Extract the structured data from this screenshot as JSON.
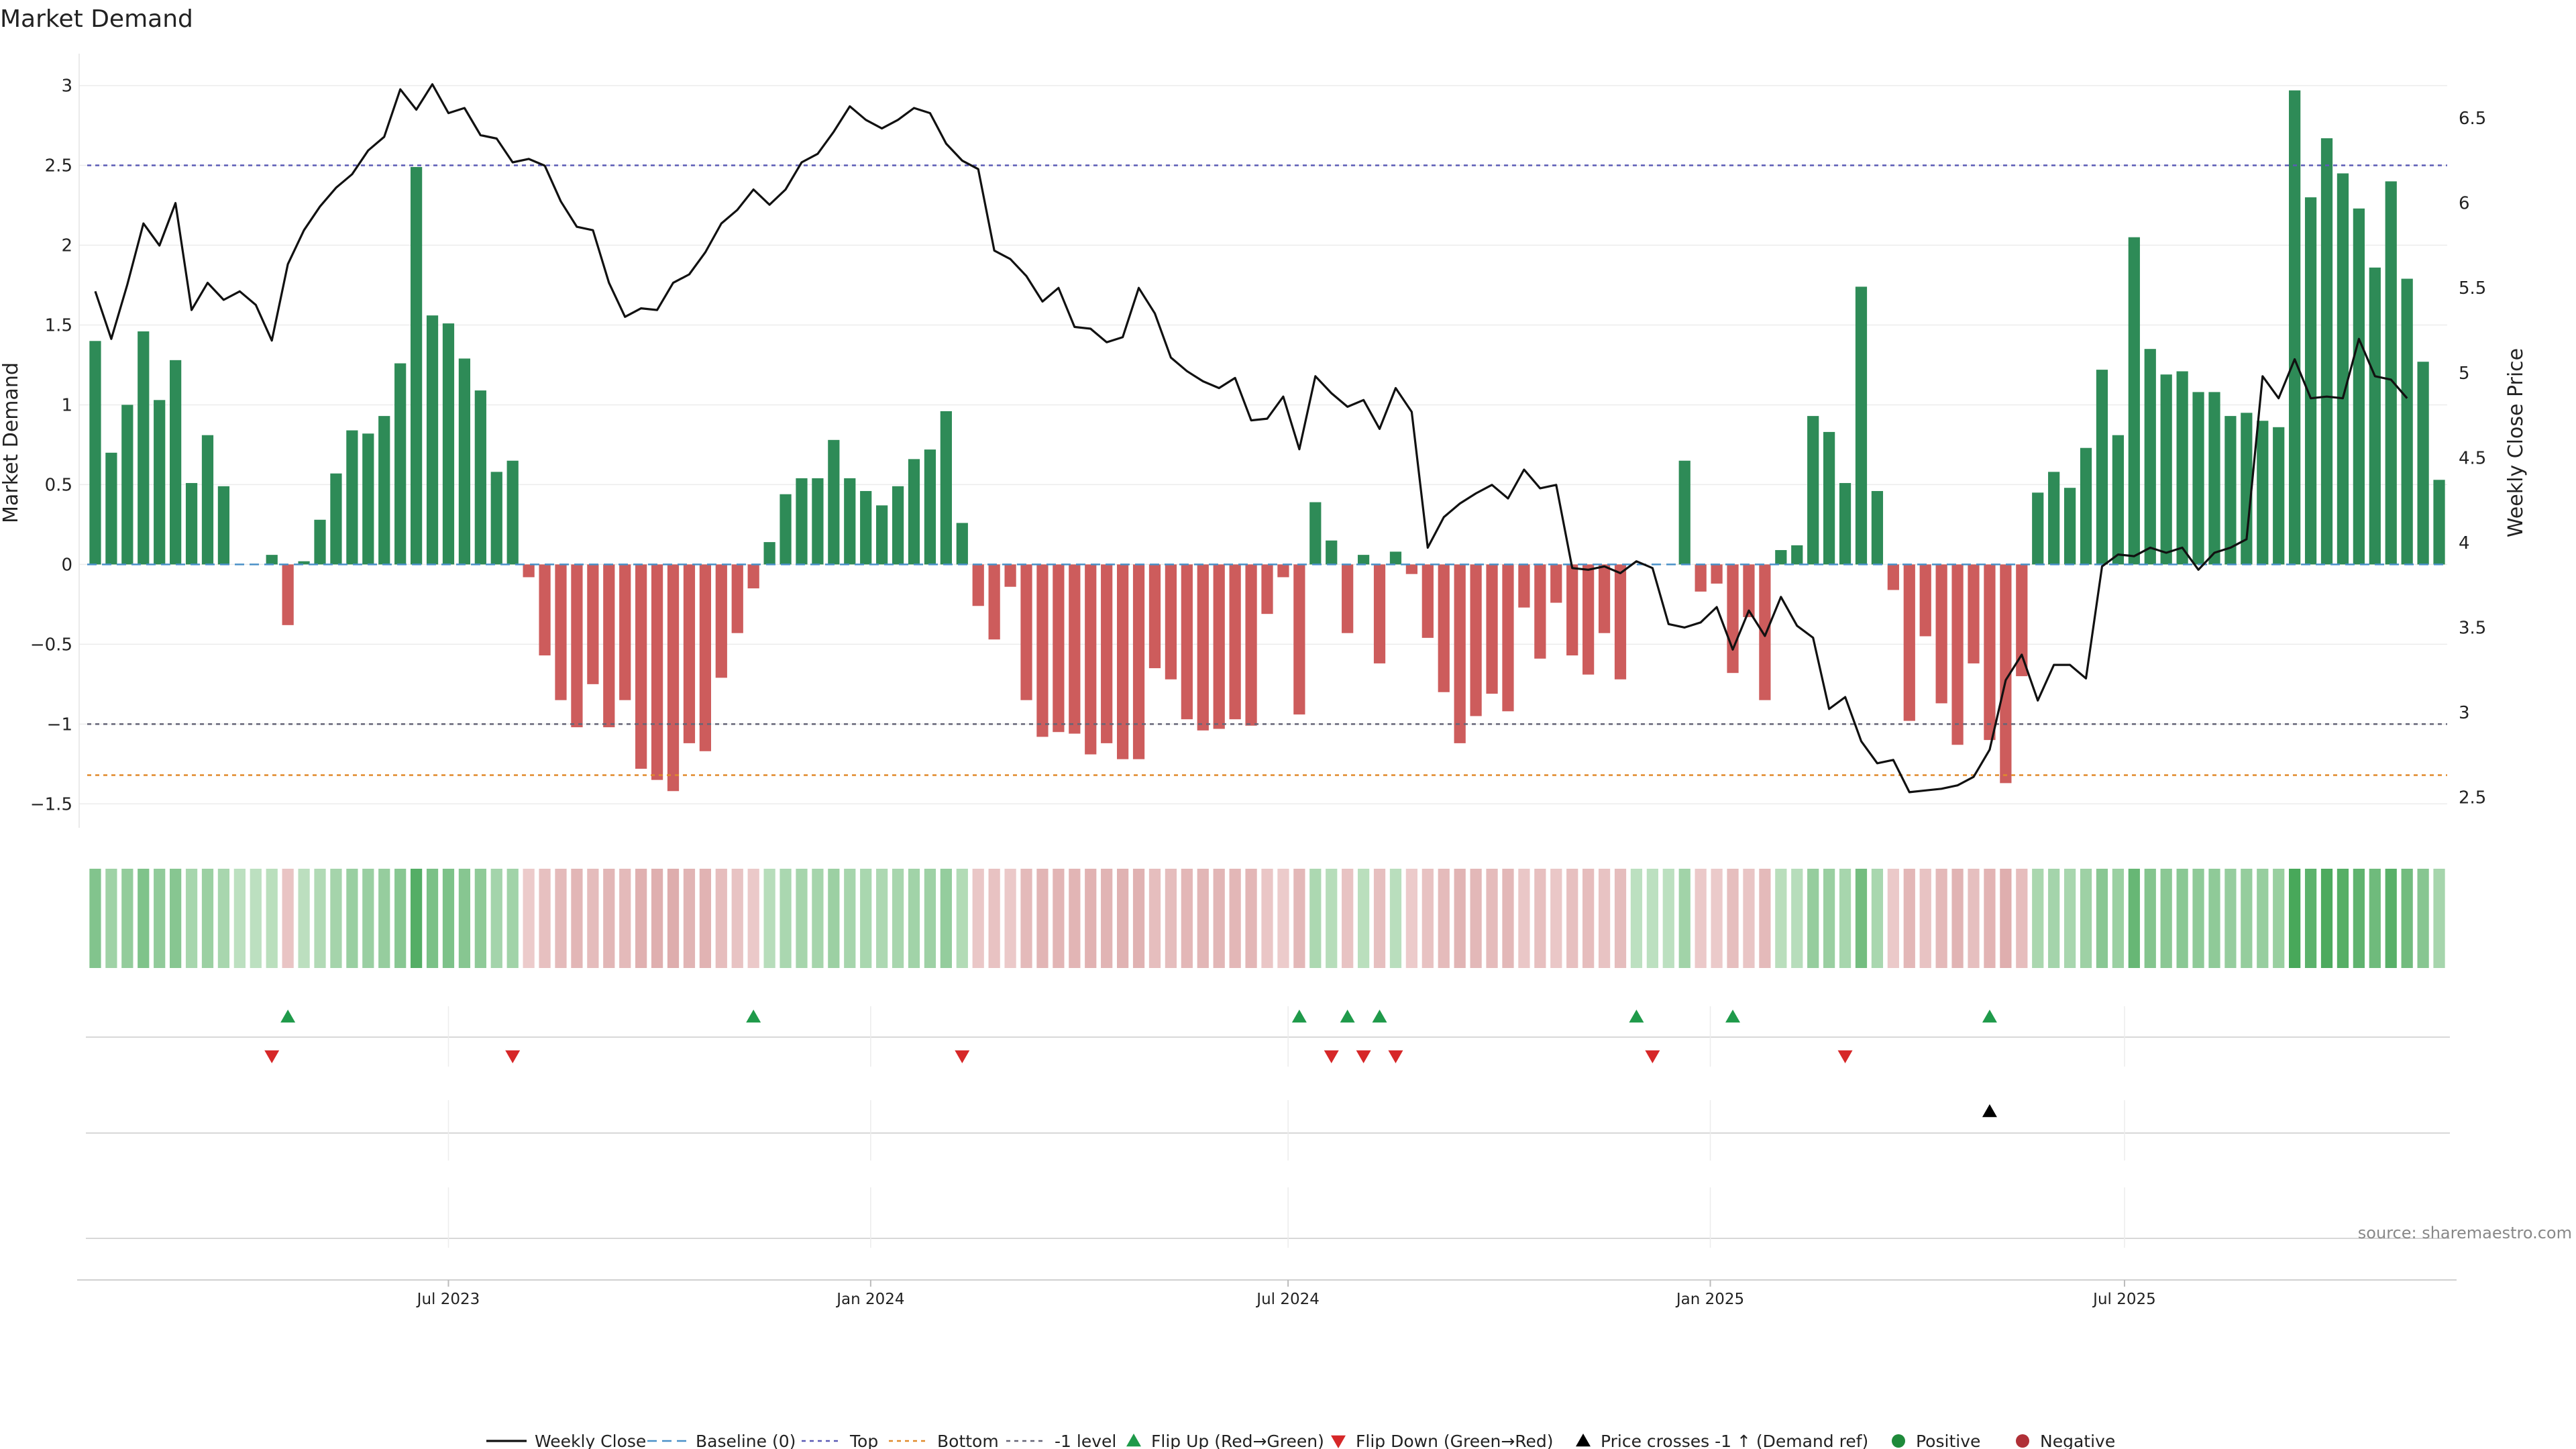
{
  "chart_data": {
    "type": "bar+line",
    "title": "Market Demand",
    "ylabel_left": "Market Demand",
    "ylabel_right": "Weekly Close Price",
    "ylim_left": [
      -1.65,
      3.2
    ],
    "yticks_left": [
      -1.5,
      -1,
      -0.5,
      0,
      0.5,
      1,
      1.5,
      2,
      2.5,
      3
    ],
    "ytick_labels_left": [
      "−1.5",
      "−1",
      "−0.5",
      "0",
      "0.5",
      "1",
      "1.5",
      "2",
      "2.5",
      "3"
    ],
    "ylim_right": [
      2.32,
      6.88
    ],
    "yticks_right": [
      2.5,
      3,
      3.5,
      4,
      4.5,
      5,
      5.5,
      6,
      6.5
    ],
    "ytick_labels_right": [
      "2.5",
      "3",
      "3.5",
      "4",
      "4.5",
      "5",
      "5.5",
      "6",
      "6.5"
    ],
    "x_week_range": [
      0,
      144
    ],
    "xticks": [
      {
        "label": "Jul 2023",
        "week": 22
      },
      {
        "label": "Jan 2024",
        "week": 48.3
      },
      {
        "label": "Jul 2024",
        "week": 74.3
      },
      {
        "label": "Jan 2025",
        "week": 100.6
      },
      {
        "label": "Jul 2025",
        "week": 126.4
      }
    ],
    "reference_lines": [
      {
        "name": "Top",
        "value": 2.5,
        "color": "#5b5bb5"
      },
      {
        "name": "Bottom",
        "value": -1.32,
        "color": "#e08a2c"
      },
      {
        "name": "-1 level",
        "value": -1,
        "color": "#666677"
      },
      {
        "name": "Baseline (0)",
        "value": 0,
        "color": "#4a90c8"
      }
    ],
    "demand": [
      1.4,
      0.7,
      1.0,
      1.46,
      1.03,
      1.28,
      0.51,
      0.81,
      0.49,
      0,
      0,
      0.06,
      -0.38,
      0.02,
      0.28,
      0.57,
      0.84,
      0.82,
      0.93,
      1.26,
      2.49,
      1.56,
      1.51,
      1.29,
      1.09,
      0.58,
      0.65,
      -0.08,
      -0.57,
      -0.85,
      -1.02,
      -0.75,
      -1.02,
      -0.85,
      -1.28,
      -1.35,
      -1.42,
      -1.12,
      -1.17,
      -0.71,
      -0.43,
      -0.15,
      0.14,
      0.44,
      0.54,
      0.54,
      0.78,
      0.54,
      0.46,
      0.37,
      0.49,
      0.66,
      0.72,
      0.96,
      0.26,
      -0.26,
      -0.47,
      -0.14,
      -0.85,
      -1.08,
      -1.05,
      -1.06,
      -1.19,
      -1.12,
      -1.22,
      -1.22,
      -0.65,
      -0.72,
      -0.97,
      -1.04,
      -1.03,
      -0.97,
      -1.01,
      -0.31,
      -0.08,
      -0.94,
      0.39,
      0.15,
      -0.43,
      0.06,
      -0.62,
      0.08,
      -0.06,
      -0.46,
      -0.8,
      -1.12,
      -0.95,
      -0.81,
      -0.92,
      -0.27,
      -0.59,
      -0.24,
      -0.57,
      -0.69,
      -0.43,
      -0.72,
      0,
      0,
      0,
      0.65,
      -0.17,
      -0.12,
      -0.68,
      -0.33,
      -0.85,
      0.09,
      0.12,
      0.93,
      0.83,
      0.51,
      1.74,
      0.46,
      -0.16,
      -0.98,
      -0.45,
      -0.87,
      -1.13,
      -0.62,
      -1.1,
      -1.37,
      -0.7,
      0.45,
      0.58,
      0.48,
      0.73,
      1.22,
      0.81,
      2.05,
      1.35,
      1.19,
      1.21,
      1.08,
      1.08,
      0.93,
      0.95,
      0.9,
      0.86,
      2.97,
      2.3,
      2.67,
      2.45,
      2.23,
      1.86,
      2.4,
      1.79,
      1.27,
      0.53
    ],
    "weekly_close": [
      5.48,
      5.2,
      5.52,
      5.88,
      5.75,
      6.0,
      5.37,
      5.53,
      5.43,
      5.48,
      5.4,
      5.19,
      5.64,
      5.84,
      5.98,
      6.09,
      6.17,
      6.31,
      6.39,
      6.67,
      6.55,
      6.7,
      6.53,
      6.56,
      6.4,
      6.38,
      6.24,
      6.26,
      6.22,
      6.01,
      5.86,
      5.84,
      5.53,
      5.33,
      5.38,
      5.37,
      5.53,
      5.58,
      5.71,
      5.88,
      5.96,
      6.08,
      5.99,
      6.08,
      6.24,
      6.29,
      6.42,
      6.57,
      6.49,
      6.44,
      6.49,
      6.56,
      6.53,
      6.35,
      6.25,
      6.2,
      5.72,
      5.67,
      5.57,
      5.42,
      5.5,
      5.27,
      5.26,
      5.18,
      5.21,
      5.5,
      5.35,
      5.09,
      5.01,
      4.95,
      4.91,
      4.97,
      4.72,
      4.73,
      4.86,
      4.55,
      4.98,
      4.88,
      4.8,
      4.84,
      4.67,
      4.91,
      4.77,
      3.97,
      4.15,
      4.23,
      4.29,
      4.34,
      4.26,
      4.43,
      4.32,
      4.34,
      3.85,
      3.84,
      3.86,
      3.82,
      3.89,
      3.85,
      3.52,
      3.5,
      3.53,
      3.62,
      3.37,
      3.6,
      3.45,
      3.68,
      3.51,
      3.44,
      3.02,
      3.09,
      2.83,
      2.7,
      2.72,
      2.53,
      2.54,
      2.55,
      2.57,
      2.62,
      2.78,
      3.19,
      3.34,
      3.07,
      3.28,
      3.28,
      3.2,
      3.86,
      3.93,
      3.92,
      3.97,
      3.94,
      3.97,
      3.84,
      3.94,
      3.97,
      4.02,
      4.98,
      4.85,
      5.08,
      4.85,
      4.86,
      4.85,
      5.2,
      4.98,
      4.96,
      4.85
    ],
    "flip_up_weeks": [
      12,
      41,
      75,
      78,
      80,
      96,
      102,
      118
    ],
    "flip_down_weeks": [
      11,
      26,
      54,
      77,
      79,
      81,
      97,
      109
    ],
    "price_cross_weeks": [
      118
    ],
    "legend": [
      {
        "label": "Weekly Close",
        "kind": "line",
        "color": "#111111"
      },
      {
        "label": "Baseline (0)",
        "kind": "dash",
        "color": "#4a90c8"
      },
      {
        "label": "Top",
        "kind": "dot",
        "color": "#5b5bb5"
      },
      {
        "label": "Bottom",
        "kind": "dot",
        "color": "#e08a2c"
      },
      {
        "label": "-1 level",
        "kind": "dot",
        "color": "#666677"
      },
      {
        "label": "Flip Up (Red→Green)",
        "kind": "tri-up",
        "color": "#1f9a4a"
      },
      {
        "label": "Flip Down (Green→Red)",
        "kind": "tri-down",
        "color": "#d62728"
      },
      {
        "label": "Price crosses -1 ↑ (Demand ref)",
        "kind": "tri-up",
        "color": "#000000"
      },
      {
        "label": "Positive",
        "kind": "circle",
        "color": "#1e8a3a"
      },
      {
        "label": "Negative",
        "kind": "circle",
        "color": "#b03037"
      }
    ],
    "colors": {
      "positive_bar": "#2e8b57",
      "negative_bar": "#cd5c5c",
      "line": "#111111"
    }
  },
  "source": "source: sharemaestro.com"
}
